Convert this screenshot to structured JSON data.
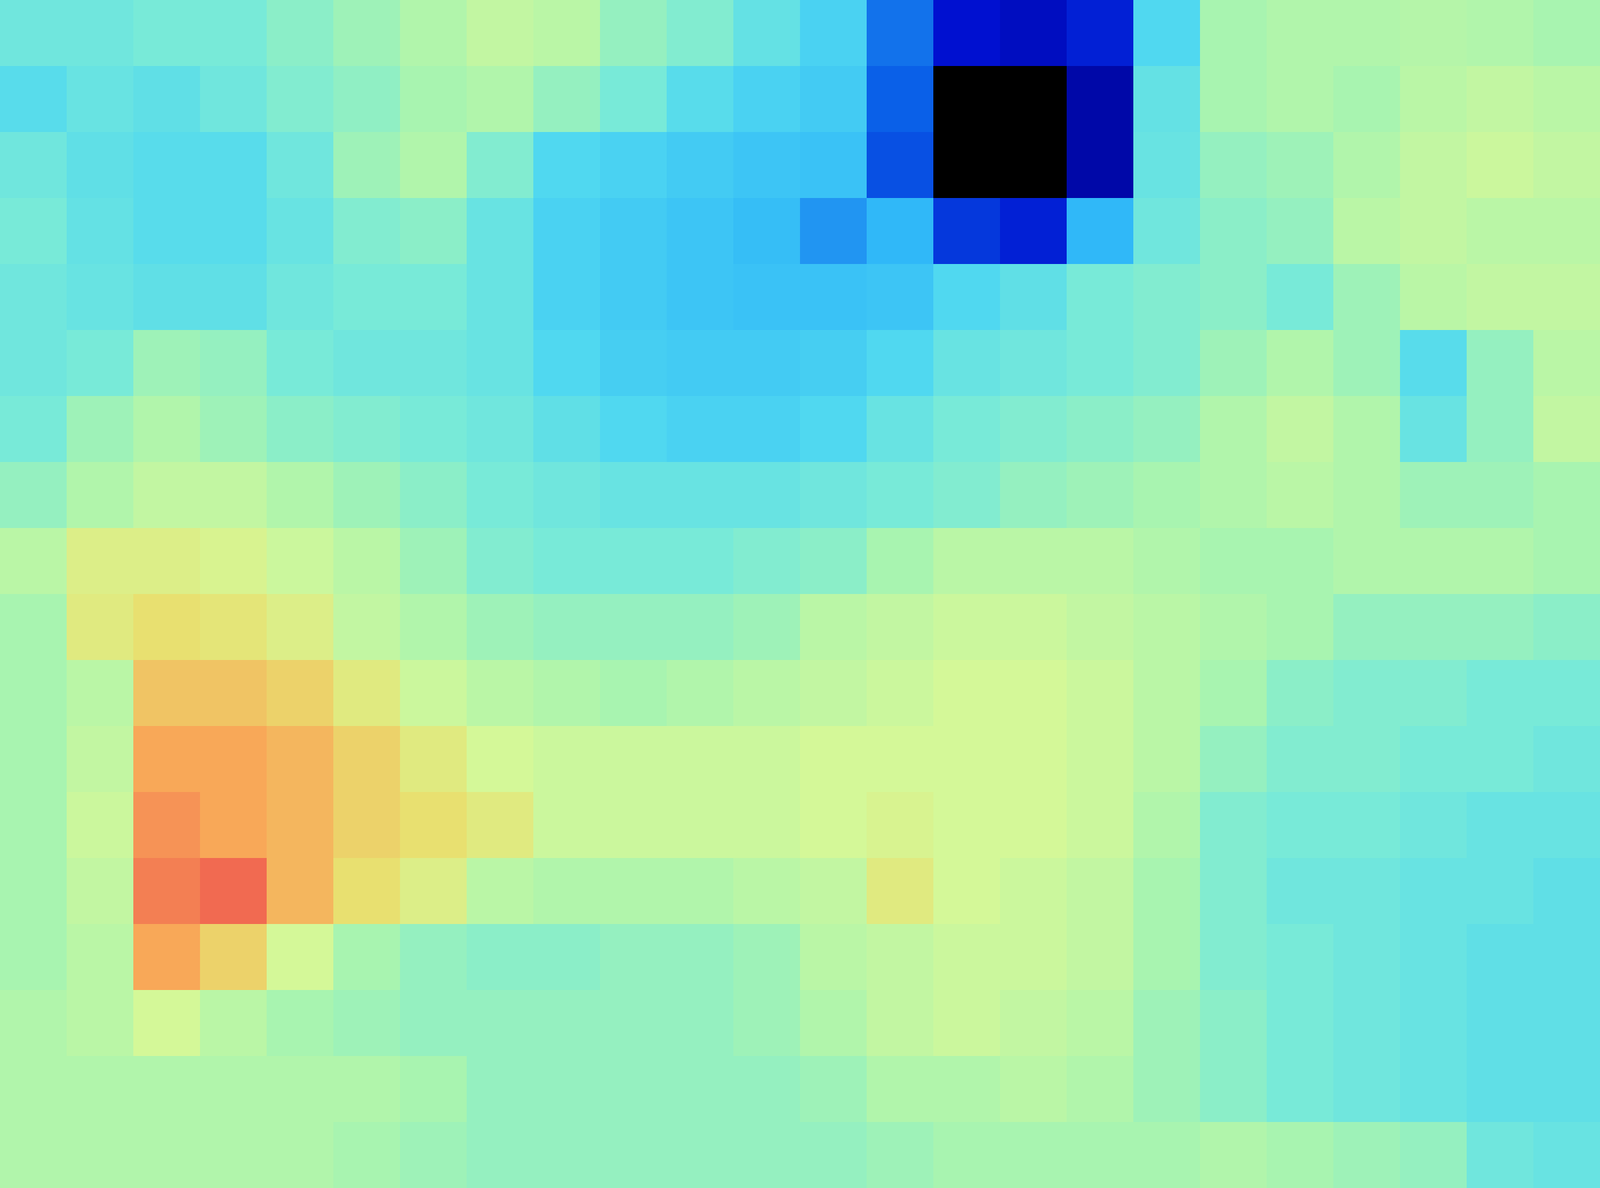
{
  "chart_data": {
    "type": "heatmap",
    "zlim": [
      0,
      100
    ],
    "tick_labels": false,
    "cells": [
      [
        48,
        48,
        50,
        50,
        54,
        58,
        62,
        66,
        64,
        56,
        52,
        45,
        38,
        22,
        10,
        8,
        12,
        40,
        60,
        62,
        62,
        63,
        62,
        60
      ],
      [
        42,
        46,
        44,
        48,
        52,
        55,
        60,
        62,
        56,
        50,
        42,
        38,
        36,
        20,
        -5,
        -10,
        5,
        45,
        60,
        62,
        60,
        64,
        66,
        64
      ],
      [
        48,
        44,
        42,
        42,
        48,
        58,
        62,
        52,
        40,
        38,
        36,
        34,
        33,
        18,
        -10,
        -10,
        5,
        46,
        56,
        58,
        62,
        66,
        68,
        66
      ],
      [
        50,
        45,
        42,
        42,
        46,
        52,
        54,
        46,
        38,
        36,
        34,
        32,
        26,
        30,
        15,
        12,
        30,
        48,
        54,
        56,
        64,
        66,
        64,
        64
      ],
      [
        48,
        46,
        44,
        44,
        48,
        50,
        50,
        46,
        38,
        36,
        34,
        33,
        33,
        34,
        40,
        44,
        50,
        52,
        54,
        50,
        58,
        64,
        66,
        66
      ],
      [
        48,
        50,
        58,
        56,
        50,
        48,
        48,
        46,
        40,
        37,
        36,
        36,
        37,
        40,
        46,
        48,
        50,
        52,
        58,
        62,
        58,
        42,
        56,
        64
      ],
      [
        50,
        58,
        62,
        58,
        54,
        52,
        50,
        48,
        44,
        40,
        38,
        38,
        40,
        46,
        50,
        52,
        54,
        56,
        62,
        66,
        62,
        46,
        56,
        66
      ],
      [
        56,
        62,
        66,
        66,
        62,
        58,
        54,
        50,
        48,
        46,
        46,
        46,
        48,
        50,
        52,
        56,
        58,
        60,
        62,
        64,
        62,
        58,
        58,
        60
      ],
      [
        64,
        74,
        74,
        72,
        68,
        64,
        58,
        52,
        50,
        50,
        50,
        52,
        54,
        60,
        64,
        64,
        64,
        62,
        60,
        60,
        62,
        62,
        62,
        60
      ],
      [
        60,
        76,
        80,
        78,
        74,
        66,
        62,
        58,
        56,
        56,
        56,
        58,
        64,
        66,
        68,
        68,
        66,
        64,
        62,
        60,
        56,
        56,
        56,
        54
      ],
      [
        60,
        64,
        84,
        84,
        82,
        76,
        68,
        64,
        62,
        60,
        62,
        64,
        66,
        68,
        70,
        70,
        68,
        64,
        60,
        54,
        52,
        52,
        50,
        50
      ],
      [
        60,
        66,
        88,
        88,
        86,
        82,
        76,
        70,
        68,
        68,
        68,
        68,
        70,
        70,
        70,
        70,
        68,
        64,
        56,
        52,
        52,
        50,
        50,
        48
      ],
      [
        60,
        68,
        90,
        88,
        86,
        82,
        80,
        76,
        68,
        68,
        68,
        68,
        70,
        72,
        70,
        70,
        68,
        62,
        52,
        50,
        50,
        48,
        46,
        46
      ],
      [
        60,
        66,
        92,
        94,
        86,
        80,
        74,
        64,
        62,
        62,
        62,
        64,
        66,
        76,
        70,
        68,
        66,
        60,
        52,
        48,
        48,
        46,
        46,
        44
      ],
      [
        60,
        64,
        88,
        82,
        70,
        60,
        56,
        54,
        54,
        56,
        56,
        58,
        64,
        66,
        68,
        68,
        66,
        60,
        52,
        50,
        48,
        46,
        44,
        44
      ],
      [
        62,
        64,
        70,
        64,
        60,
        58,
        56,
        56,
        56,
        56,
        56,
        58,
        62,
        66,
        68,
        66,
        64,
        58,
        54,
        50,
        48,
        46,
        44,
        44
      ],
      [
        62,
        62,
        62,
        62,
        62,
        62,
        60,
        56,
        56,
        56,
        56,
        56,
        58,
        62,
        62,
        64,
        62,
        58,
        54,
        50,
        48,
        46,
        44,
        44
      ],
      [
        62,
        62,
        62,
        62,
        62,
        60,
        58,
        56,
        56,
        56,
        56,
        56,
        56,
        58,
        60,
        60,
        60,
        60,
        62,
        60,
        58,
        56,
        48,
        46
      ]
    ]
  }
}
